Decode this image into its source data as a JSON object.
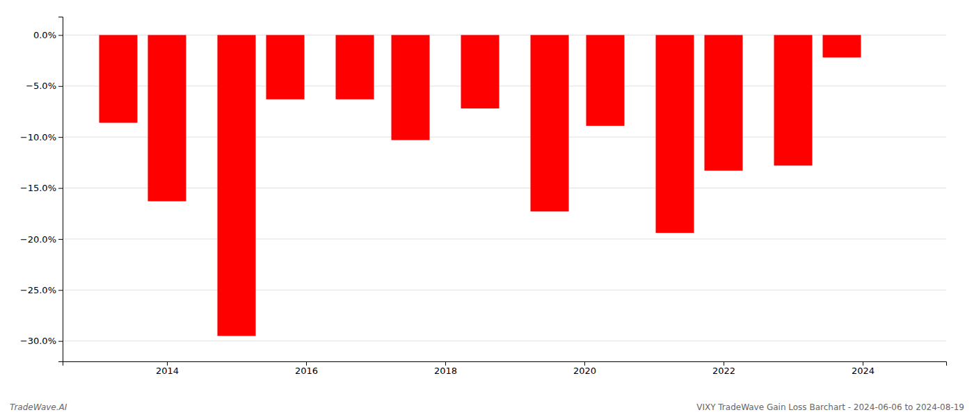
{
  "chart_data": {
    "type": "bar",
    "x": [
      2013.3,
      2014.0,
      2015.0,
      2015.7,
      2016.7,
      2017.5,
      2018.5,
      2019.5,
      2020.3,
      2021.3,
      2022.0,
      2023.0,
      2023.7
    ],
    "values": [
      -0.086,
      -0.163,
      -0.295,
      -0.063,
      -0.063,
      -0.103,
      -0.072,
      -0.173,
      -0.089,
      -0.194,
      -0.133,
      -0.128,
      -0.022
    ],
    "color": "#ff0000",
    "xlim": [
      2012.5,
      2025.2
    ],
    "xticks": [
      2014,
      2016,
      2018,
      2020,
      2022,
      2024
    ],
    "ylim": [
      -0.32,
      0.018
    ],
    "yticks": [
      {
        "value": 0.0,
        "label": "0.0%"
      },
      {
        "value": -0.05,
        "label": "−5.0%"
      },
      {
        "value": -0.1,
        "label": "−10.0%"
      },
      {
        "value": -0.15,
        "label": "−15.0%"
      },
      {
        "value": -0.2,
        "label": "−20.0%"
      },
      {
        "value": -0.25,
        "label": "−25.0%"
      },
      {
        "value": -0.3,
        "label": "−30.0%"
      }
    ],
    "grid": true,
    "annotations": [
      "TradeWave.AI",
      "VIXY TradeWave Gain Loss Barchart - 2024-06-06 to 2024-08-19"
    ]
  }
}
